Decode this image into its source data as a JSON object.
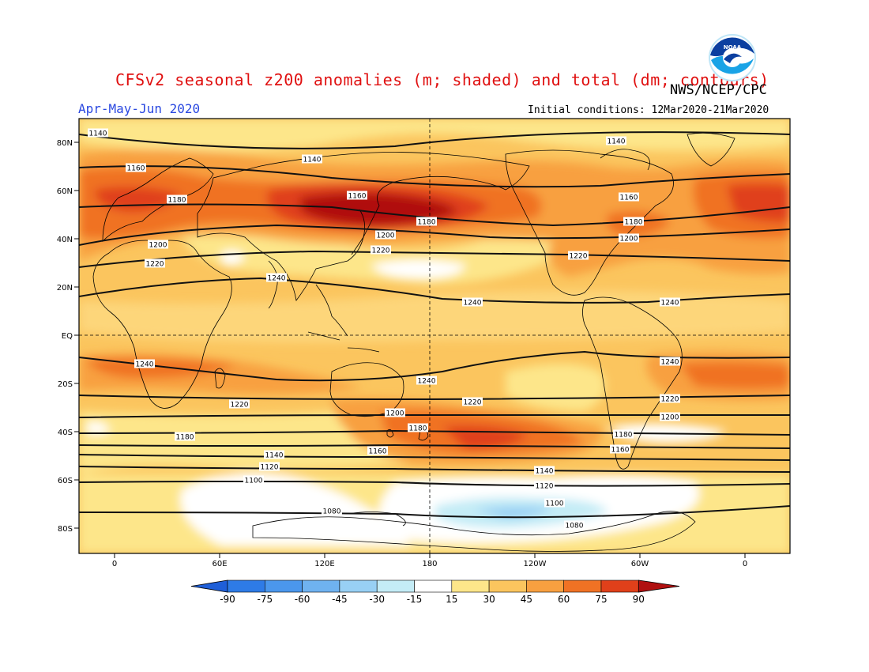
{
  "title": "CFSv2 seasonal z200 anomalies (m; shaded) and total (dm; contours)",
  "agency": "NWS/NCEP/CPC",
  "season": "Apr-May-Jun 2020",
  "initial_conditions": "Initial conditions: 12Mar2020-21Mar2020",
  "logo_text": "NOAA",
  "map": {
    "lon_ticks": [
      "0",
      "60E",
      "120E",
      "180",
      "120W",
      "60W",
      "0"
    ],
    "lat_ticks": [
      "80N",
      "60N",
      "40N",
      "20N",
      "EQ",
      "20S",
      "40S",
      "60S",
      "80S"
    ]
  },
  "contour_labels": [
    {
      "value": "1140"
    },
    {
      "value": "1140"
    },
    {
      "value": "1140"
    },
    {
      "value": "1160"
    },
    {
      "value": "1160"
    },
    {
      "value": "1160"
    },
    {
      "value": "1180"
    },
    {
      "value": "1180"
    },
    {
      "value": "1180"
    },
    {
      "value": "1200"
    },
    {
      "value": "1200"
    },
    {
      "value": "1200"
    },
    {
      "value": "1220"
    },
    {
      "value": "1220"
    },
    {
      "value": "1220"
    },
    {
      "value": "1240"
    },
    {
      "value": "1240"
    },
    {
      "value": "1240"
    },
    {
      "value": "1240"
    },
    {
      "value": "1240"
    },
    {
      "value": "1240"
    },
    {
      "value": "1220"
    },
    {
      "value": "1220"
    },
    {
      "value": "1220"
    },
    {
      "value": "1200"
    },
    {
      "value": "1200"
    },
    {
      "value": "1180"
    },
    {
      "value": "1180"
    },
    {
      "value": "1180"
    },
    {
      "value": "1160"
    },
    {
      "value": "1160"
    },
    {
      "value": "1140"
    },
    {
      "value": "1140"
    },
    {
      "value": "1120"
    },
    {
      "value": "1120"
    },
    {
      "value": "1100"
    },
    {
      "value": "1100"
    },
    {
      "value": "1080"
    },
    {
      "value": "1080"
    }
  ],
  "colorbar": {
    "labels": [
      "-90",
      "-75",
      "-60",
      "-45",
      "-30",
      "-15",
      "15",
      "30",
      "45",
      "60",
      "75",
      "90"
    ],
    "colors": [
      "#1f5fd8",
      "#2e7be6",
      "#4b97ec",
      "#6fb2f0",
      "#98d0f4",
      "#c4ecf6",
      "#ffffff",
      "#fde68a",
      "#fbc55e",
      "#f8a040",
      "#f07224",
      "#e0401a",
      "#b01010"
    ]
  }
}
